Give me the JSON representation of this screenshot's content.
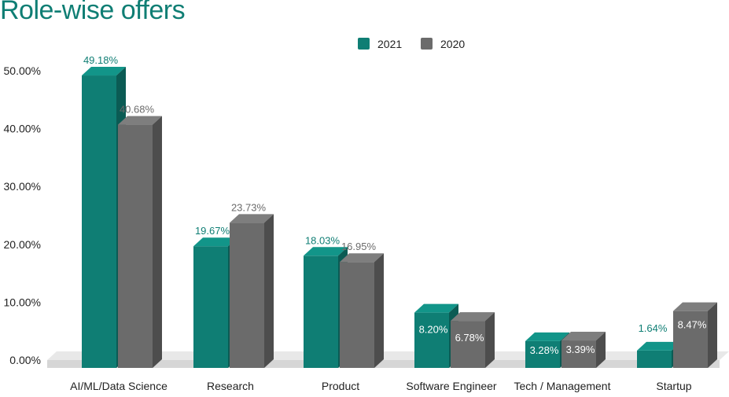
{
  "title": "Role-wise offers",
  "chart_data": {
    "type": "bar",
    "title": "Role-wise offers",
    "categories": [
      "AI/ML/Data Science",
      "Research",
      "Product",
      "Software Engineer",
      "Tech / Management",
      "Startup"
    ],
    "series": [
      {
        "name": "2021",
        "color": "#0f7e74",
        "values": [
          49.18,
          19.67,
          18.03,
          8.2,
          3.28,
          1.64
        ],
        "labels": [
          "49.18%",
          "19.67%",
          "18.03%",
          "8.20%",
          "3.28%",
          "1.64%"
        ]
      },
      {
        "name": "2020",
        "color": "#6b6b6b",
        "values": [
          40.68,
          23.73,
          16.95,
          6.78,
          3.39,
          8.47
        ],
        "labels": [
          "40.68%",
          "23.73%",
          "16.95%",
          "6.78%",
          "3.39%",
          "8.47%"
        ]
      }
    ],
    "yticks": [
      "0.00%",
      "10.00%",
      "20.00%",
      "30.00%",
      "40.00%",
      "50.00%"
    ],
    "ylim": [
      0,
      50
    ],
    "legend_position": "top",
    "grid": false
  }
}
